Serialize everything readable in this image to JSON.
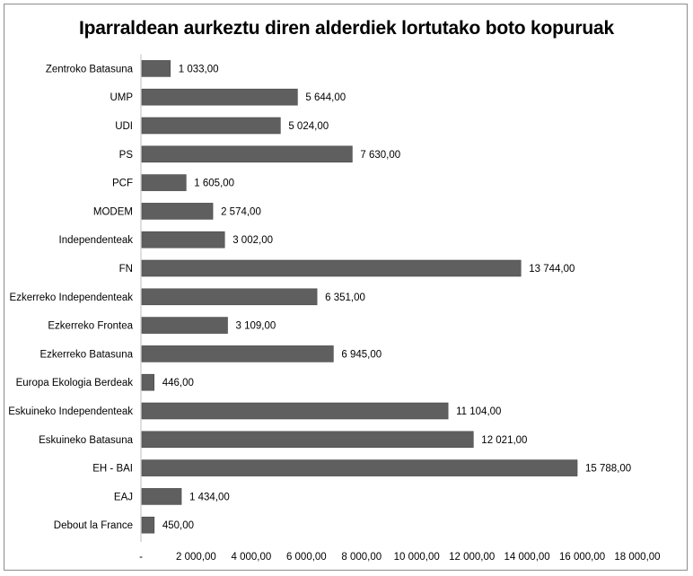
{
  "chart_data": {
    "type": "bar",
    "orientation": "horizontal",
    "title": "Iparraldean aurkeztu diren alderdiek lortutako boto kopuruak",
    "categories": [
      "Zentroko Batasuna",
      "UMP",
      "UDI",
      "PS",
      "PCF",
      "MODEM",
      "Independenteak",
      "FN",
      "Ezkerreko Independenteak",
      "Ezkerreko Frontea",
      "Ezkerreko Batasuna",
      "Europa Ekologia Berdeak",
      "Eskuineko Independenteak",
      "Eskuineko Batasuna",
      "EH - BAI",
      "EAJ",
      "Debout la France"
    ],
    "values": [
      1033,
      5644,
      5024,
      7630,
      1605,
      2574,
      3002,
      13744,
      6351,
      3109,
      6945,
      446,
      11104,
      12021,
      15788,
      1434,
      450
    ],
    "value_labels": [
      "1 033,00",
      "5 644,00",
      "5 024,00",
      "7 630,00",
      "1 605,00",
      "2 574,00",
      "3 002,00",
      "13 744,00",
      "6 351,00",
      "3 109,00",
      "6 945,00",
      "446,00",
      "11 104,00",
      "12 021,00",
      "15 788,00",
      "1 434,00",
      "450,00"
    ],
    "xlim": [
      0,
      18000
    ],
    "x_ticks": [
      0,
      2000,
      4000,
      6000,
      8000,
      10000,
      12000,
      14000,
      16000,
      18000
    ],
    "x_tick_labels": [
      "-",
      "2 000,00",
      "4 000,00",
      "6 000,00",
      "8 000,00",
      "10 000,00",
      "12 000,00",
      "14 000,00",
      "16 000,00",
      "18 000,00"
    ],
    "grid": false,
    "legend": "none",
    "bar_color": "#5f5f5f"
  }
}
